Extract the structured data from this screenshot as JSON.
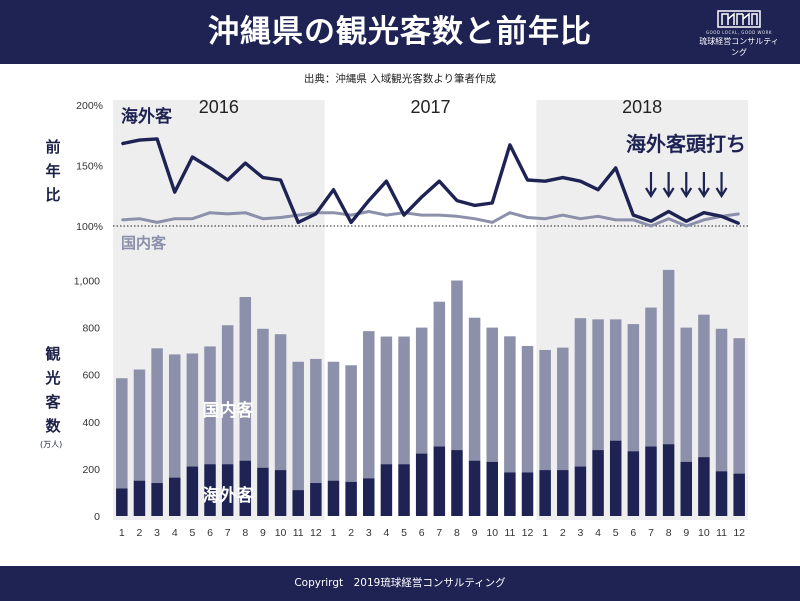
{
  "header": {
    "title": "沖縄県の観光客数と前年比",
    "logo_tagline": "GOOD LOCAL, GOOD WORK",
    "logo_name": "琉球経営コンサルティング"
  },
  "source_note": "出典：沖縄県 入域観光客数より筆者作成",
  "footer": {
    "copyright": "Copyrirgt　2019琉球経営コンサルティング"
  },
  "colors": {
    "navy": "#1e2354",
    "gray_series": "#8c90aa",
    "shade": "#eeeeef"
  },
  "chart_data": [
    {
      "type": "line",
      "ylabel": "前年比",
      "y_ticks": [
        "100%",
        "150%",
        "200%"
      ],
      "ylim": [
        100,
        200
      ],
      "reference_line": 100,
      "year_labels": [
        "2016",
        "2017",
        "2018"
      ],
      "shaded_years": [
        "2016",
        "2018"
      ],
      "annotation": {
        "text": "海外客頭打ち",
        "arrow_months": [
          "2018-7",
          "2018-8",
          "2018-9",
          "2018-10",
          "2018-11"
        ]
      },
      "series": [
        {
          "name": "海外客",
          "color": "#1e2354",
          "values": [
            168,
            171,
            172,
            128,
            157,
            148,
            138,
            152,
            140,
            138,
            103,
            110,
            130,
            103,
            121,
            137,
            109,
            124,
            137,
            121,
            117,
            119,
            167,
            138,
            137,
            140,
            137,
            130,
            148,
            109,
            104,
            112,
            104,
            111,
            108,
            102
          ]
        },
        {
          "name": "国内客",
          "color": "#8c90aa",
          "values": [
            105,
            106,
            103,
            106,
            106,
            111,
            110,
            111,
            106,
            107,
            109,
            111,
            111,
            109,
            112,
            109,
            111,
            109,
            109,
            108,
            106,
            103,
            111,
            107,
            106,
            109,
            106,
            108,
            105,
            105,
            100,
            106,
            100,
            105,
            108,
            110
          ]
        }
      ]
    },
    {
      "type": "bar",
      "stacked": true,
      "ylabel": "観光客数",
      "unit": "(万人)",
      "y_ticks": [
        "0",
        "200",
        "400",
        "600",
        "800",
        "1,000"
      ],
      "ylim": [
        0,
        1100
      ],
      "categories": [
        "1",
        "2",
        "3",
        "4",
        "5",
        "6",
        "7",
        "8",
        "9",
        "10",
        "11",
        "12",
        "1",
        "2",
        "3",
        "4",
        "5",
        "6",
        "7",
        "8",
        "9",
        "10",
        "11",
        "12",
        "1",
        "2",
        "3",
        "4",
        "5",
        "6",
        "7",
        "8",
        "9",
        "10",
        "11",
        "12"
      ],
      "series": [
        {
          "name": "海外客",
          "color": "#1e2354",
          "values": [
            117,
            150,
            140,
            163,
            210,
            220,
            220,
            235,
            205,
            195,
            110,
            140,
            150,
            145,
            160,
            220,
            220,
            265,
            295,
            280,
            235,
            230,
            185,
            185,
            195,
            195,
            210,
            280,
            320,
            275,
            295,
            305,
            230,
            250,
            190,
            180
          ]
        },
        {
          "name": "国内客",
          "color": "#8c90aa",
          "values": [
            468,
            472,
            572,
            523,
            480,
            500,
            590,
            695,
            590,
            577,
            545,
            527,
            505,
            495,
            625,
            542,
            542,
            535,
            615,
            720,
            607,
            570,
            578,
            537,
            510,
            520,
            630,
            555,
            515,
            540,
            590,
            740,
            570,
            605,
            605,
            575
          ]
        }
      ]
    }
  ]
}
